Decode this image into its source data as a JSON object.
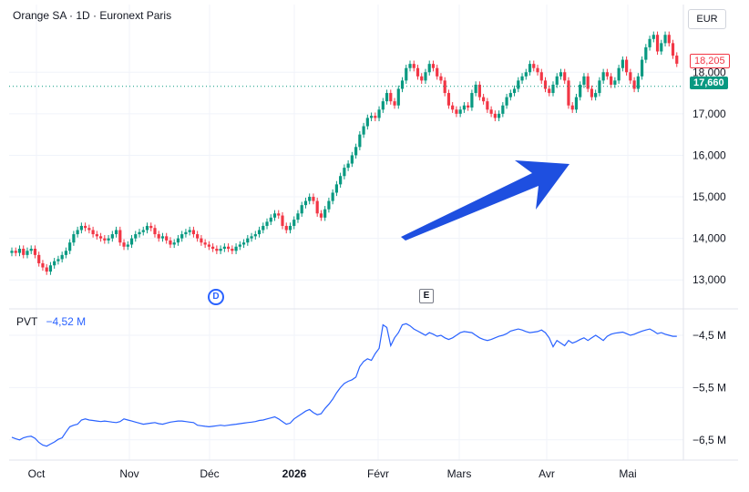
{
  "header": {
    "title": "Orange SA · 1D · Euronext Paris",
    "currency": "EUR"
  },
  "price_tags": {
    "last": "18,205",
    "current": "17,660"
  },
  "markers": {
    "dividend": "D",
    "earnings": "E"
  },
  "indicator": {
    "name": "PVT",
    "value": "−4,52 M"
  },
  "colors": {
    "up": "#089981",
    "down": "#f23645",
    "pvt": "#2962ff",
    "arrow": "#1e4fe0",
    "grid": "#f0f3fa"
  },
  "chart_data": [
    {
      "type": "candlestick",
      "y_ticks": [
        "13,000",
        "14,000",
        "15,000",
        "16,000",
        "17,000",
        "18,000"
      ],
      "ylim": [
        12.5,
        19.3
      ],
      "x_tick_labels": [
        "Oct",
        "Nov",
        "Déc",
        "2026",
        "Févr",
        "Mars",
        "Avr",
        "Mai"
      ],
      "close_series": [
        13.7,
        13.65,
        13.75,
        13.6,
        13.7,
        13.75,
        13.6,
        13.4,
        13.3,
        13.2,
        13.35,
        13.45,
        13.5,
        13.6,
        13.7,
        13.9,
        14.1,
        14.2,
        14.3,
        14.25,
        14.2,
        14.1,
        14.05,
        14.0,
        13.95,
        14.0,
        14.1,
        14.2,
        13.9,
        13.8,
        13.85,
        14.0,
        14.1,
        14.15,
        14.2,
        14.3,
        14.25,
        14.1,
        14.0,
        14.05,
        13.95,
        13.85,
        13.9,
        14.0,
        14.1,
        14.15,
        14.2,
        14.1,
        14.0,
        13.9,
        13.85,
        13.8,
        13.75,
        13.7,
        13.75,
        13.8,
        13.75,
        13.7,
        13.8,
        13.85,
        13.9,
        14.0,
        14.05,
        14.1,
        14.2,
        14.3,
        14.4,
        14.5,
        14.6,
        14.55,
        14.3,
        14.2,
        14.3,
        14.45,
        14.6,
        14.8,
        14.9,
        15.0,
        14.9,
        14.6,
        14.5,
        14.7,
        14.9,
        15.1,
        15.3,
        15.5,
        15.7,
        15.8,
        16.0,
        16.2,
        16.5,
        16.7,
        16.9,
        16.95,
        16.9,
        17.1,
        17.3,
        17.5,
        17.3,
        17.2,
        17.6,
        17.8,
        18.1,
        18.2,
        18.1,
        17.9,
        17.8,
        18.0,
        18.2,
        18.1,
        17.9,
        17.8,
        17.5,
        17.2,
        17.1,
        17.0,
        17.1,
        17.2,
        17.15,
        17.5,
        17.7,
        17.4,
        17.3,
        17.1,
        17.0,
        16.9,
        17.0,
        17.2,
        17.4,
        17.5,
        17.6,
        17.8,
        17.9,
        18.0,
        18.2,
        18.1,
        18.0,
        17.8,
        17.6,
        17.5,
        17.7,
        17.9,
        18.0,
        17.8,
        17.2,
        17.1,
        17.4,
        17.7,
        17.9,
        17.6,
        17.4,
        17.5,
        17.8,
        18.0,
        17.9,
        17.7,
        17.8,
        18.1,
        18.3,
        18.0,
        17.8,
        17.6,
        17.9,
        18.3,
        18.6,
        18.8,
        18.9,
        18.5,
        18.7,
        18.9,
        18.7,
        18.4,
        18.205
      ]
    },
    {
      "type": "line",
      "name": "PVT",
      "y_ticks": [
        "−4,5 M",
        "−5,5 M",
        "−6,5 M"
      ],
      "ylim": [
        -6.8,
        -4.1
      ],
      "values": [
        -6.45,
        -6.48,
        -6.5,
        -6.46,
        -6.44,
        -6.43,
        -6.47,
        -6.55,
        -6.6,
        -6.62,
        -6.58,
        -6.54,
        -6.49,
        -6.46,
        -6.35,
        -6.25,
        -6.22,
        -6.2,
        -6.12,
        -6.1,
        -6.12,
        -6.13,
        -6.14,
        -6.15,
        -6.14,
        -6.15,
        -6.16,
        -6.17,
        -6.15,
        -6.1,
        -6.12,
        -6.14,
        -6.16,
        -6.18,
        -6.2,
        -6.19,
        -6.18,
        -6.17,
        -6.19,
        -6.2,
        -6.18,
        -6.16,
        -6.15,
        -6.14,
        -6.14,
        -6.15,
        -6.16,
        -6.17,
        -6.22,
        -6.23,
        -6.24,
        -6.25,
        -6.24,
        -6.23,
        -6.22,
        -6.23,
        -6.22,
        -6.21,
        -6.2,
        -6.19,
        -6.18,
        -6.17,
        -6.16,
        -6.15,
        -6.13,
        -6.12,
        -6.1,
        -6.08,
        -6.06,
        -6.1,
        -6.15,
        -6.2,
        -6.18,
        -6.1,
        -6.05,
        -6.0,
        -5.95,
        -5.92,
        -5.98,
        -6.02,
        -6.0,
        -5.9,
        -5.82,
        -5.72,
        -5.6,
        -5.5,
        -5.42,
        -5.38,
        -5.35,
        -5.3,
        -5.1,
        -5.0,
        -4.95,
        -4.98,
        -4.85,
        -4.75,
        -4.3,
        -4.35,
        -4.7,
        -4.55,
        -4.45,
        -4.3,
        -4.28,
        -4.32,
        -4.38,
        -4.42,
        -4.46,
        -4.5,
        -4.45,
        -4.48,
        -4.52,
        -4.5,
        -4.55,
        -4.58,
        -4.55,
        -4.5,
        -4.45,
        -4.43,
        -4.44,
        -4.45,
        -4.5,
        -4.55,
        -4.58,
        -4.6,
        -4.58,
        -4.55,
        -4.52,
        -4.5,
        -4.47,
        -4.42,
        -4.4,
        -4.38,
        -4.4,
        -4.43,
        -4.45,
        -4.44,
        -4.43,
        -4.4,
        -4.45,
        -4.55,
        -4.72,
        -4.6,
        -4.65,
        -4.7,
        -4.6,
        -4.65,
        -4.62,
        -4.58,
        -4.55,
        -4.6,
        -4.55,
        -4.5,
        -4.55,
        -4.6,
        -4.52,
        -4.48,
        -4.46,
        -4.45,
        -4.44,
        -4.47,
        -4.5,
        -4.48,
        -4.45,
        -4.42,
        -4.4,
        -4.38,
        -4.42,
        -4.47,
        -4.45,
        -4.48,
        -4.5,
        -4.52,
        -4.52
      ]
    }
  ]
}
